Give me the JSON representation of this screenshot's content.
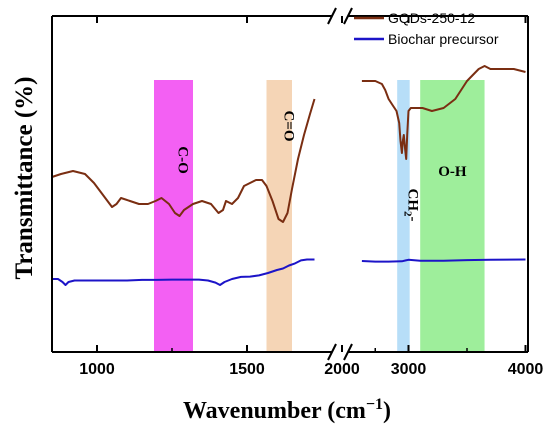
{
  "chart_data": {
    "type": "line",
    "xlabel": "Wavenumber (cm",
    "xlabel_sup": "−1",
    "xlabel_close": ")",
    "ylabel": "Transmittance (%)",
    "broken_x_axis": true,
    "x_ticks": [
      "1000",
      "1500",
      "2000",
      "3000",
      "4000"
    ],
    "legend": {
      "placement": "top-right"
    },
    "bands": [
      {
        "label": "C-O",
        "x_from": 1190,
        "x_to": 1320,
        "color": "#ee22ee",
        "opacity": 0.72,
        "vertical_text": true
      },
      {
        "label": "C=O",
        "x_from": 1565,
        "x_to": 1650,
        "color": "#f2c79e",
        "opacity": 0.75,
        "vertical_text": true
      },
      {
        "label": "CH",
        "sub": "2",
        "suffix": "-",
        "x_from": 2830,
        "x_to": 3010,
        "color": "#9fd3f5",
        "opacity": 0.75,
        "vertical_text": true
      },
      {
        "label": "O-H",
        "x_from": 3100,
        "x_to": 3650,
        "color": "#7de87a",
        "opacity": 0.75,
        "vertical_text": false
      }
    ],
    "series": [
      {
        "name": "GQDs-250-12",
        "color": "#7a2e12",
        "segments": [
          [
            [
              850,
              0.5
            ],
            [
              880,
              0.51
            ],
            [
              920,
              0.52
            ],
            [
              960,
              0.51
            ],
            [
              990,
              0.48
            ],
            [
              1020,
              0.44
            ],
            [
              1050,
              0.4
            ],
            [
              1065,
              0.41
            ],
            [
              1080,
              0.43
            ],
            [
              1110,
              0.42
            ],
            [
              1140,
              0.41
            ],
            [
              1170,
              0.41
            ],
            [
              1195,
              0.42
            ],
            [
              1215,
              0.43
            ],
            [
              1240,
              0.41
            ],
            [
              1260,
              0.38
            ],
            [
              1275,
              0.37
            ],
            [
              1290,
              0.39
            ],
            [
              1320,
              0.41
            ],
            [
              1350,
              0.42
            ],
            [
              1380,
              0.41
            ],
            [
              1405,
              0.38
            ],
            [
              1420,
              0.39
            ],
            [
              1430,
              0.42
            ],
            [
              1450,
              0.41
            ],
            [
              1470,
              0.43
            ],
            [
              1490,
              0.47
            ],
            [
              1510,
              0.48
            ],
            [
              1530,
              0.49
            ],
            [
              1550,
              0.49
            ],
            [
              1565,
              0.47
            ],
            [
              1585,
              0.42
            ],
            [
              1605,
              0.36
            ],
            [
              1620,
              0.35
            ],
            [
              1635,
              0.38
            ],
            [
              1650,
              0.46
            ],
            [
              1670,
              0.56
            ],
            [
              1690,
              0.64
            ],
            [
              1710,
              0.71
            ],
            [
              1725,
              0.76
            ]
          ],
          [
            [
              2300,
              0.82
            ],
            [
              2400,
              0.82
            ],
            [
              2500,
              0.82
            ],
            [
              2600,
              0.81
            ],
            [
              2650,
              0.79
            ],
            [
              2700,
              0.76
            ],
            [
              2760,
              0.74
            ],
            [
              2820,
              0.72
            ],
            [
              2860,
              0.68
            ],
            [
              2880,
              0.62
            ],
            [
              2900,
              0.58
            ],
            [
              2915,
              0.62
            ],
            [
              2930,
              0.64
            ],
            [
              2950,
              0.59
            ],
            [
              2965,
              0.56
            ],
            [
              2980,
              0.64
            ],
            [
              3000,
              0.72
            ],
            [
              3020,
              0.73
            ],
            [
              3060,
              0.73
            ],
            [
              3120,
              0.73
            ],
            [
              3200,
              0.72
            ],
            [
              3300,
              0.73
            ],
            [
              3400,
              0.76
            ],
            [
              3500,
              0.82
            ],
            [
              3600,
              0.86
            ],
            [
              3650,
              0.87
            ],
            [
              3700,
              0.86
            ],
            [
              3800,
              0.86
            ],
            [
              3900,
              0.86
            ],
            [
              4000,
              0.85
            ]
          ]
        ]
      },
      {
        "name": "Biochar precursor",
        "color": "#1c14c8",
        "segments": [
          [
            [
              850,
              0.16
            ],
            [
              870,
              0.16
            ],
            [
              885,
              0.15
            ],
            [
              895,
              0.14
            ],
            [
              905,
              0.15
            ],
            [
              925,
              0.155
            ],
            [
              960,
              0.155
            ],
            [
              1000,
              0.155
            ],
            [
              1050,
              0.155
            ],
            [
              1100,
              0.155
            ],
            [
              1150,
              0.157
            ],
            [
              1200,
              0.157
            ],
            [
              1250,
              0.158
            ],
            [
              1300,
              0.158
            ],
            [
              1340,
              0.158
            ],
            [
              1370,
              0.155
            ],
            [
              1395,
              0.148
            ],
            [
              1410,
              0.14
            ],
            [
              1425,
              0.15
            ],
            [
              1450,
              0.16
            ],
            [
              1480,
              0.167
            ],
            [
              1510,
              0.168
            ],
            [
              1540,
              0.172
            ],
            [
              1570,
              0.18
            ],
            [
              1600,
              0.19
            ],
            [
              1620,
              0.195
            ],
            [
              1640,
              0.205
            ],
            [
              1660,
              0.212
            ],
            [
              1680,
              0.222
            ],
            [
              1700,
              0.225
            ],
            [
              1725,
              0.225
            ]
          ],
          [
            [
              2300,
              0.22
            ],
            [
              2500,
              0.218
            ],
            [
              2700,
              0.218
            ],
            [
              2900,
              0.219
            ],
            [
              2960,
              0.222
            ],
            [
              3000,
              0.224
            ],
            [
              3100,
              0.221
            ],
            [
              3300,
              0.221
            ],
            [
              3500,
              0.223
            ],
            [
              3700,
              0.224
            ],
            [
              4000,
              0.225
            ]
          ]
        ]
      }
    ]
  }
}
